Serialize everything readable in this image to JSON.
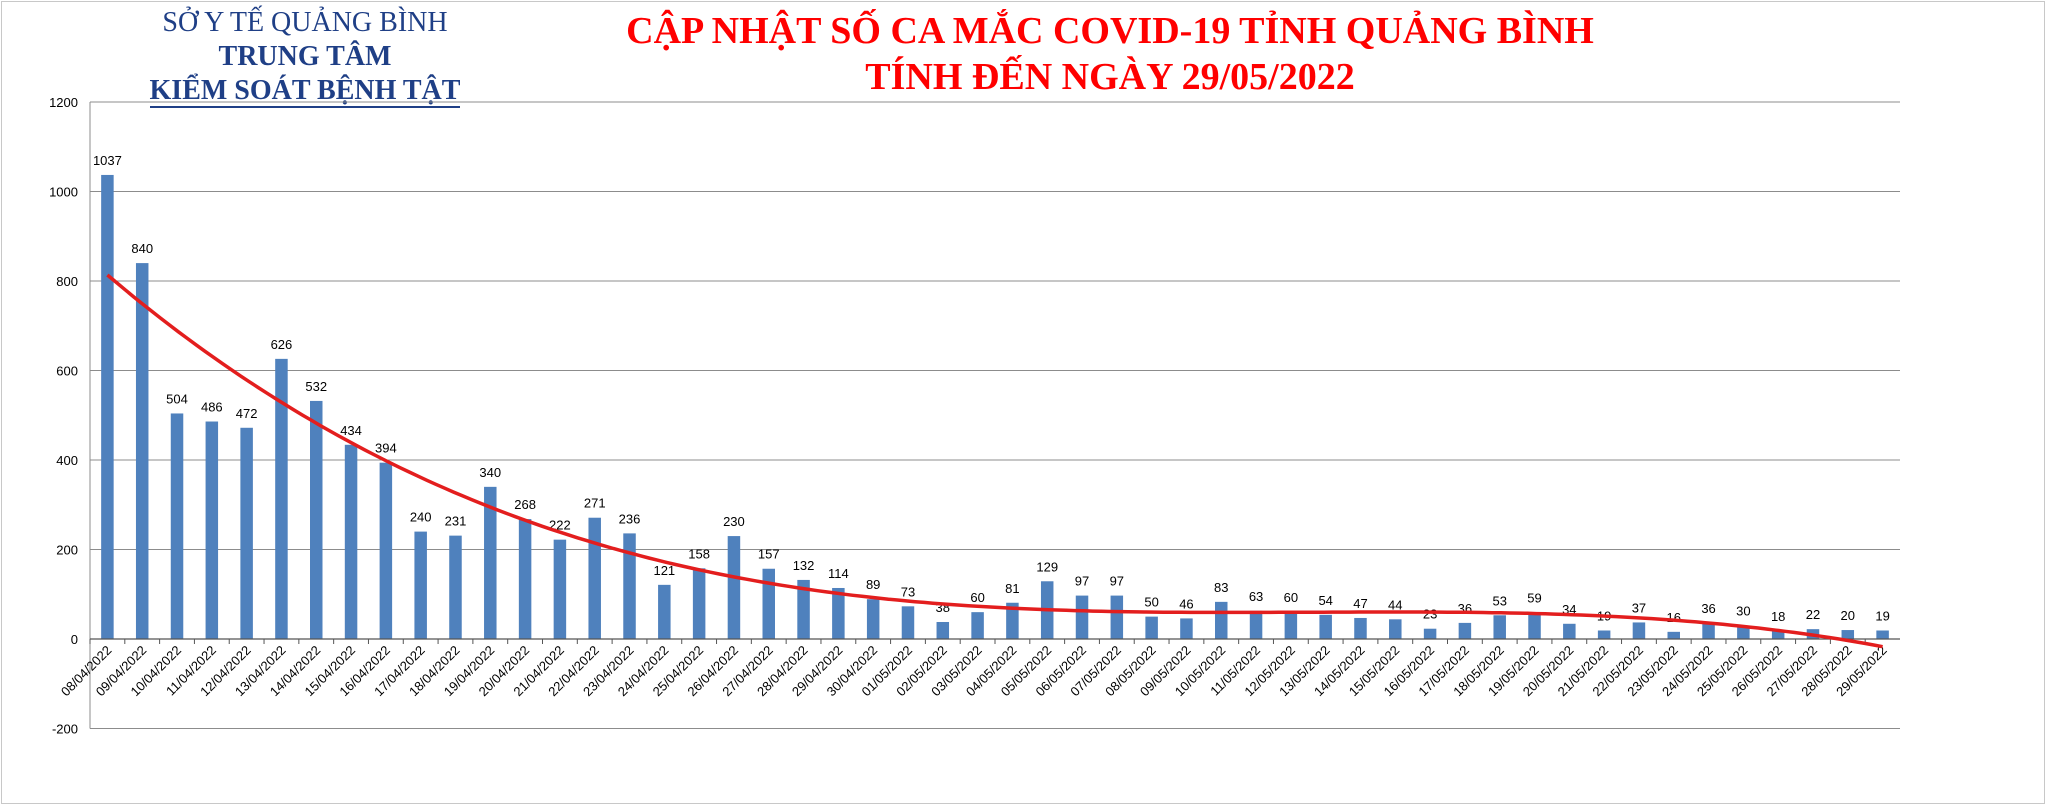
{
  "header": {
    "org_line1": "SỞ Y TẾ QUẢNG BÌNH",
    "org_line2": "TRUNG TÂM",
    "org_line3": "KIỂM SOÁT BỆNH TẬT",
    "title_line1": "CẬP NHẬT SỐ CA MẮC COVID-19 TỈNH QUẢNG BÌNH",
    "title_line2": "TÍNH ĐẾN NGÀY 29/05/2022"
  },
  "colors": {
    "bar": "#4f81bd",
    "trend": "#e31e1e",
    "title": "#ff0000",
    "org": "#1f3f86",
    "grid": "#8c8c8c"
  },
  "chart_data": {
    "type": "bar",
    "title": "CẬP NHẬT SỐ CA MẮC COVID-19 TỈNH QUẢNG BÌNH TÍNH ĐẾN NGÀY 29/05/2022",
    "xlabel": "",
    "ylabel": "",
    "ylim": [
      -200,
      1200
    ],
    "yticks": [
      -200,
      0,
      200,
      400,
      600,
      800,
      1000,
      1200
    ],
    "grid": true,
    "trendline": true,
    "categories": [
      "08/04/2022",
      "09/04/2022",
      "10/04/2022",
      "11/04/2022",
      "12/04/2022",
      "13/04/2022",
      "14/04/2022",
      "15/04/2022",
      "16/04/2022",
      "17/04/2022",
      "18/04/2022",
      "19/04/2022",
      "20/04/2022",
      "21/04/2022",
      "22/04/2022",
      "23/04/2022",
      "24/04/2022",
      "25/04/2022",
      "26/04/2022",
      "27/04/2022",
      "28/04/2022",
      "29/04/2022",
      "30/04/2022",
      "01/05/2022",
      "02/05/2022",
      "03/05/2022",
      "04/05/2022",
      "05/05/2022",
      "06/05/2022",
      "07/05/2022",
      "08/05/2022",
      "09/05/2022",
      "10/05/2022",
      "11/05/2022",
      "12/05/2022",
      "13/05/2022",
      "14/05/2022",
      "15/05/2022",
      "16/05/2022",
      "17/05/2022",
      "18/05/2022",
      "19/05/2022",
      "20/05/2022",
      "21/05/2022",
      "22/05/2022",
      "23/05/2022",
      "24/05/2022",
      "25/05/2022",
      "26/05/2022",
      "27/05/2022",
      "28/05/2022",
      "29/05/2022"
    ],
    "values": [
      1037,
      840,
      504,
      486,
      472,
      626,
      532,
      434,
      394,
      240,
      231,
      340,
      268,
      222,
      271,
      236,
      121,
      158,
      230,
      157,
      132,
      114,
      89,
      73,
      38,
      60,
      81,
      129,
      97,
      97,
      50,
      46,
      83,
      63,
      60,
      54,
      47,
      44,
      23,
      36,
      53,
      59,
      34,
      19,
      37,
      16,
      36,
      30,
      18,
      22,
      20,
      19
    ]
  }
}
